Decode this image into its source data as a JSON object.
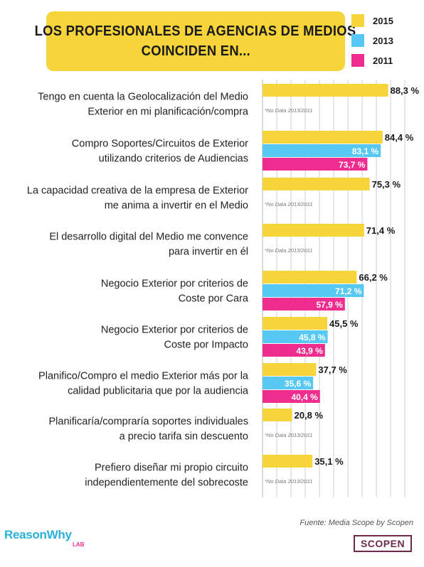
{
  "title": {
    "line1": "LOS PROFESIONALES DE AGENCIAS DE MEDIOS",
    "line2": "COINCIDEN EN..."
  },
  "legend": [
    {
      "label": "2015",
      "color": "#f7d43a"
    },
    {
      "label": "2013",
      "color": "#56c8f2"
    },
    {
      "label": "2011",
      "color": "#ee2d8f"
    }
  ],
  "source": "Fuente: Media Scope by Scopen",
  "logos": {
    "reasonwhy": "ReasonWhy",
    "reasonwhy_sub": "LAB",
    "scopen": "SCOPEN"
  },
  "chart_data": {
    "type": "bar",
    "orientation": "horizontal",
    "xlim": [
      0,
      100
    ],
    "grid": true,
    "legend_position": "top-right",
    "no_data_note": "*No Data 2013/2011",
    "series_names": [
      "2015",
      "2013",
      "2011"
    ],
    "categories": [
      {
        "label_lines": [
          "Tengo en cuenta la Geolocalización del Medio",
          "Exterior en mi planificación/compra"
        ],
        "values": [
          88.3,
          null,
          null
        ],
        "labels": [
          "88,3 %",
          null,
          null
        ],
        "no_data": true
      },
      {
        "label_lines": [
          "Compro Soportes/Circuitos de Exterior",
          "utilizando criterios de Audiencias"
        ],
        "values": [
          84.4,
          83.1,
          73.7
        ],
        "labels": [
          "84,4 %",
          "83,1 %",
          "73,7 %"
        ],
        "no_data": false
      },
      {
        "label_lines": [
          "La capacidad creativa de la empresa de Exterior",
          "me anima a invertir en el Medio"
        ],
        "values": [
          75.3,
          null,
          null
        ],
        "labels": [
          "75,3 %",
          null,
          null
        ],
        "no_data": true
      },
      {
        "label_lines": [
          "El desarrollo digital del Medio me convence",
          "para invertir en él"
        ],
        "values": [
          71.4,
          null,
          null
        ],
        "labels": [
          "71,4 %",
          null,
          null
        ],
        "no_data": true
      },
      {
        "label_lines": [
          "Negocio Exterior por criterios de",
          "Coste por Cara"
        ],
        "values": [
          66.2,
          71.2,
          57.9
        ],
        "labels": [
          "66,2 %",
          "71,2 %",
          "57,9 %"
        ],
        "no_data": false
      },
      {
        "label_lines": [
          "Negocio Exterior por criterios de",
          "Coste por Impacto"
        ],
        "values": [
          45.5,
          45.8,
          43.9
        ],
        "labels": [
          "45,5 %",
          "45,8 %",
          "43,9 %"
        ],
        "no_data": false
      },
      {
        "label_lines": [
          "Planifico/Compro el medio Exterior más por la",
          "calidad publicitaria que por la audiencia"
        ],
        "values": [
          37.7,
          35.6,
          40.4
        ],
        "labels": [
          "37,7 %",
          "35,6 %",
          "40,4 %"
        ],
        "no_data": false
      },
      {
        "label_lines": [
          "Planificaría/compraría soportes individuales",
          "a precio tarifa sin descuento"
        ],
        "values": [
          20.8,
          null,
          null
        ],
        "labels": [
          "20,8 %",
          null,
          null
        ],
        "no_data": true
      },
      {
        "label_lines": [
          "Prefiero diseñar mi propio circuito",
          "independientemente del sobrecoste"
        ],
        "values": [
          35.1,
          null,
          null
        ],
        "labels": [
          "35,1 %",
          null,
          null
        ],
        "no_data": true
      }
    ]
  }
}
